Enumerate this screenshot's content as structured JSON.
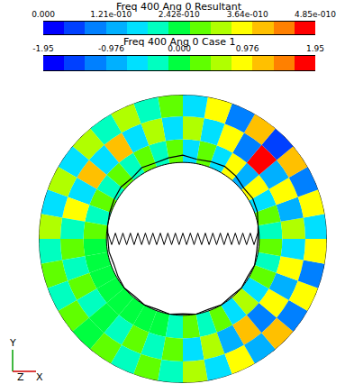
{
  "chart_data": [
    {
      "type": "colorbar",
      "title": "Freq 400 Ang 0 Resultant",
      "xlim": [
        0,
        4.85e-10
      ],
      "xticks": [
        {
          "value": 0,
          "label": "0.000"
        },
        {
          "value": 1.21e-10,
          "label": "1.21e-010"
        },
        {
          "value": 2.42e-10,
          "label": "2.42e-010"
        },
        {
          "value": 3.64e-10,
          "label": "3.64e-010"
        },
        {
          "value": 4.85e-10,
          "label": "4.85e-010"
        }
      ]
    },
    {
      "type": "colorbar",
      "title": "Freq 400 Ang 0 Case 1",
      "xlim": [
        -1.95,
        1.95
      ],
      "xticks": [
        -1.95,
        -0.976,
        {
          "value": 0,
          "label": "0.000"
        },
        0.976,
        1.95
      ]
    },
    {
      "type": "polar_contour",
      "tick_labels": false,
      "grid": false,
      "rlim": [
        0,
        1
      ],
      "r_bands": [
        [
          0.53,
          0.69
        ],
        [
          0.69,
          0.85
        ],
        [
          0.85,
          1.0
        ]
      ],
      "theta": [
        5,
        15,
        25,
        35,
        45,
        55,
        65,
        75,
        85,
        95,
        105,
        115,
        125,
        135,
        145,
        155,
        165,
        175,
        185,
        195,
        205,
        215,
        225,
        235,
        245,
        255,
        265,
        275,
        285,
        295,
        305,
        315,
        325,
        335,
        345,
        355
      ],
      "cells": [
        [
          -0.2,
          0.3,
          -0.5,
          0.8,
          -0.9,
          1.0,
          -0.6,
          0.4,
          -0.5,
          0.3,
          -0.2,
          0.2,
          -0.3,
          0.4,
          -0.2,
          0.3,
          -0.4,
          0.2,
          -0.1,
          0.1,
          0,
          0.1,
          0,
          0.1,
          -0.1,
          0.1,
          -0.2,
          0.3,
          -0.3,
          0.4,
          -0.5,
          0.6,
          -0.5,
          0.4,
          -0.3,
          0.2
        ],
        [
          0.5,
          -0.8,
          1.0,
          -1.0,
          1.8,
          -1.2,
          1.0,
          -0.7,
          0.6,
          -0.5,
          0.6,
          -0.7,
          1.1,
          -0.6,
          1.2,
          -0.5,
          1.0,
          -0.4,
          0.3,
          -0.2,
          0.3,
          -0.2,
          0.1,
          -0.2,
          0.3,
          -0.3,
          0.4,
          -0.5,
          0.7,
          -0.8,
          1.1,
          -1.2,
          1.0,
          -0.9,
          0.8,
          -0.6
        ],
        [
          -0.6,
          0.9,
          -1.2,
          1.3,
          -1.5,
          1.2,
          -1.1,
          0.9,
          -0.5,
          0.4,
          -0.3,
          0.5,
          -0.4,
          0.6,
          -0.5,
          0.7,
          -0.6,
          0.5,
          -0.3,
          0.2,
          -0.2,
          0.2,
          -0.1,
          0.3,
          -0.2,
          0.4,
          -0.4,
          0.5,
          -0.6,
          0.8,
          -1.0,
          1.1,
          -1.2,
          1.0,
          -1.1,
          0.8
        ]
      ],
      "deformed_shape": {
        "theta": [
          0,
          10,
          20,
          30,
          40,
          50,
          60,
          70,
          80,
          90,
          100,
          110,
          120,
          130,
          140,
          150,
          160,
          170,
          180,
          190,
          200,
          210,
          220,
          230,
          240,
          250,
          260,
          270,
          280,
          290,
          300,
          310,
          320,
          330,
          340,
          350
        ],
        "r": [
          0.52,
          0.53,
          0.55,
          0.56,
          0.55,
          0.57,
          0.58,
          0.57,
          0.56,
          0.58,
          0.57,
          0.56,
          0.57,
          0.55,
          0.56,
          0.55,
          0.54,
          0.53,
          0.52,
          0.52,
          0.51,
          0.52,
          0.53,
          0.52,
          0.53,
          0.52,
          0.53,
          0.52,
          0.53,
          0.52,
          0.53,
          0.52,
          0.53,
          0.52,
          0.53,
          0.52
        ]
      },
      "zigzag": {
        "x": [
          -0.52,
          -0.494,
          -0.468,
          -0.442,
          -0.416,
          -0.39,
          -0.364,
          -0.338,
          -0.312,
          -0.286,
          -0.26,
          -0.234,
          -0.208,
          -0.182,
          -0.156,
          -0.13,
          -0.104,
          -0.078,
          -0.052,
          -0.026,
          0,
          0.026,
          0.052,
          0.078,
          0.104,
          0.13,
          0.156,
          0.182,
          0.208,
          0.234,
          0.26,
          0.286,
          0.312,
          0.338,
          0.364,
          0.39,
          0.416,
          0.442,
          0.468,
          0.494,
          0.52
        ],
        "y": [
          0.04,
          -0.04,
          0.04,
          -0.04,
          0.04,
          -0.04,
          0.04,
          -0.04,
          0.04,
          -0.04,
          0.04,
          -0.04,
          0.04,
          -0.04,
          0.04,
          -0.04,
          0.04,
          -0.04,
          0.04,
          -0.04,
          0.04,
          -0.04,
          0.04,
          -0.04,
          0.04,
          -0.04,
          0.04,
          -0.04,
          0.04,
          -0.04,
          0.04,
          -0.04,
          0.04,
          -0.04,
          0.04,
          -0.04,
          0.04,
          -0.04,
          0.04,
          -0.04,
          0.04
        ]
      },
      "axis_triad": [
        "Y",
        "Z",
        "X"
      ]
    }
  ]
}
